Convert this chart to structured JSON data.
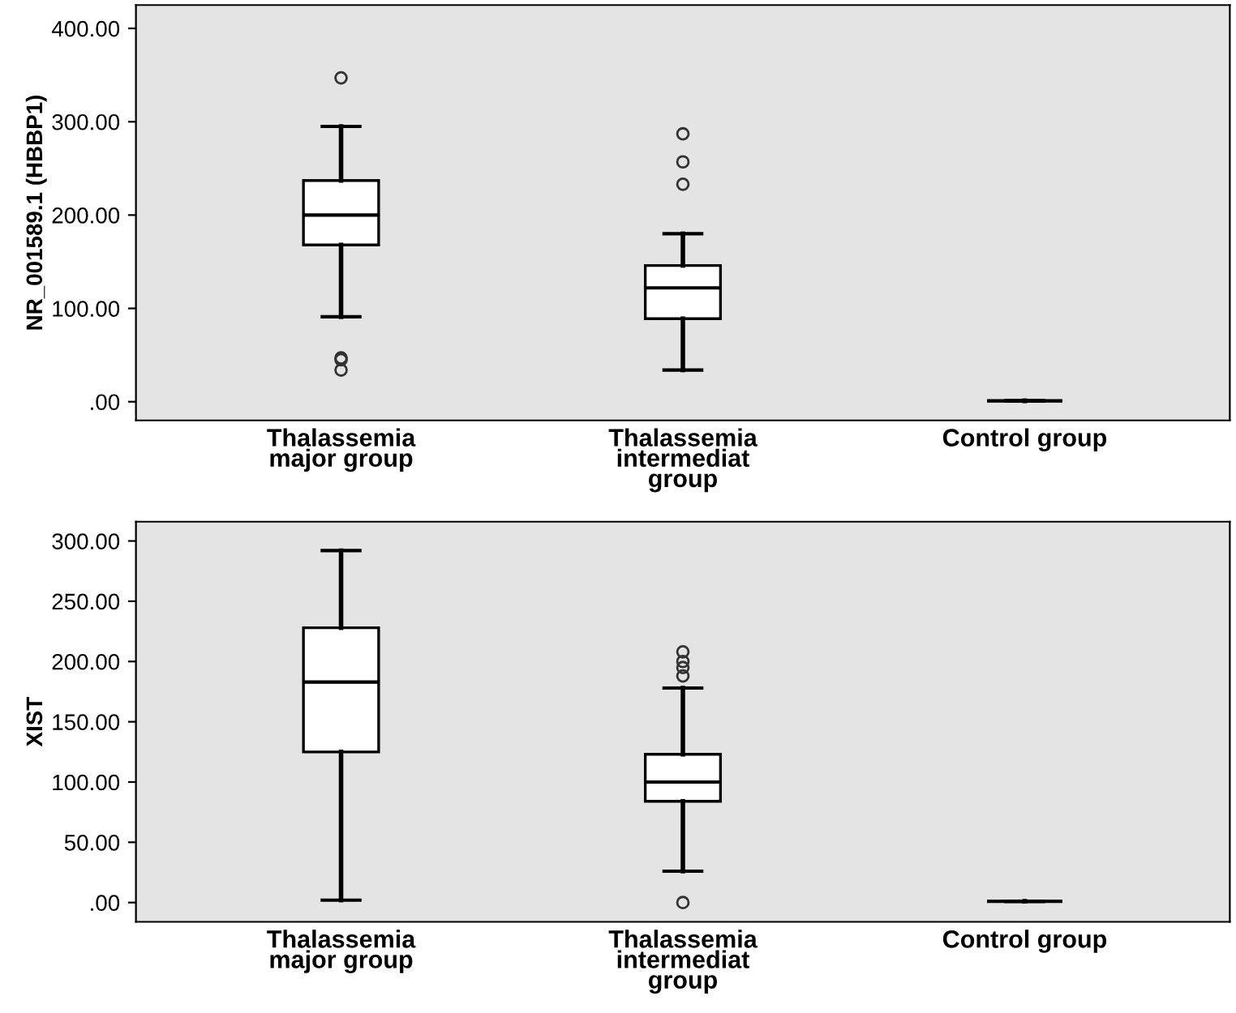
{
  "chart_data": [
    {
      "type": "box",
      "ylabel": "NR_001589.1 (HBBP1)",
      "categories": [
        "Thalassemia\nmajor group",
        "Thalassemia\nintermediat\ngroup",
        "Control group"
      ],
      "boxes": [
        {
          "low": 91,
          "q1": 168,
          "median": 200,
          "q3": 237,
          "high": 295,
          "outliers": [
            347,
            47,
            45,
            34
          ]
        },
        {
          "low": 34,
          "q1": 89,
          "median": 122,
          "q3": 146,
          "high": 180,
          "outliers": [
            233,
            257,
            287
          ]
        },
        {
          "low": 1,
          "q1": 1,
          "median": 1,
          "q3": 1,
          "high": 1
        }
      ],
      "ylim": [
        -20,
        425
      ],
      "yticks": [
        {
          "value": 0,
          "label": ".00"
        },
        {
          "value": 100,
          "label": "100.00"
        },
        {
          "value": 200,
          "label": "200.00"
        },
        {
          "value": 300,
          "label": "300.00"
        },
        {
          "value": 400,
          "label": "400.00"
        }
      ],
      "grid": false
    },
    {
      "type": "box",
      "ylabel": "XIST",
      "categories": [
        "Thalassemia\nmajor group",
        "Thalassemia\nintermediat\ngroup",
        "Control group"
      ],
      "boxes": [
        {
          "low": 2,
          "q1": 125,
          "median": 183,
          "q3": 228,
          "high": 292
        },
        {
          "low": 26,
          "q1": 84,
          "median": 100,
          "q3": 123,
          "high": 178,
          "outliers": [
            208,
            200,
            195,
            188,
            0
          ]
        },
        {
          "low": 1,
          "q1": 1,
          "median": 1,
          "q3": 1,
          "high": 1
        }
      ],
      "ylim": [
        -16,
        316
      ],
      "yticks": [
        {
          "value": 0,
          "label": ".00"
        },
        {
          "value": 50,
          "label": "50.00"
        },
        {
          "value": 100,
          "label": "100.00"
        },
        {
          "value": 150,
          "label": "150.00"
        },
        {
          "value": 200,
          "label": "200.00"
        },
        {
          "value": 250,
          "label": "250.00"
        },
        {
          "value": 300,
          "label": "300.00"
        }
      ],
      "grid": false
    }
  ]
}
